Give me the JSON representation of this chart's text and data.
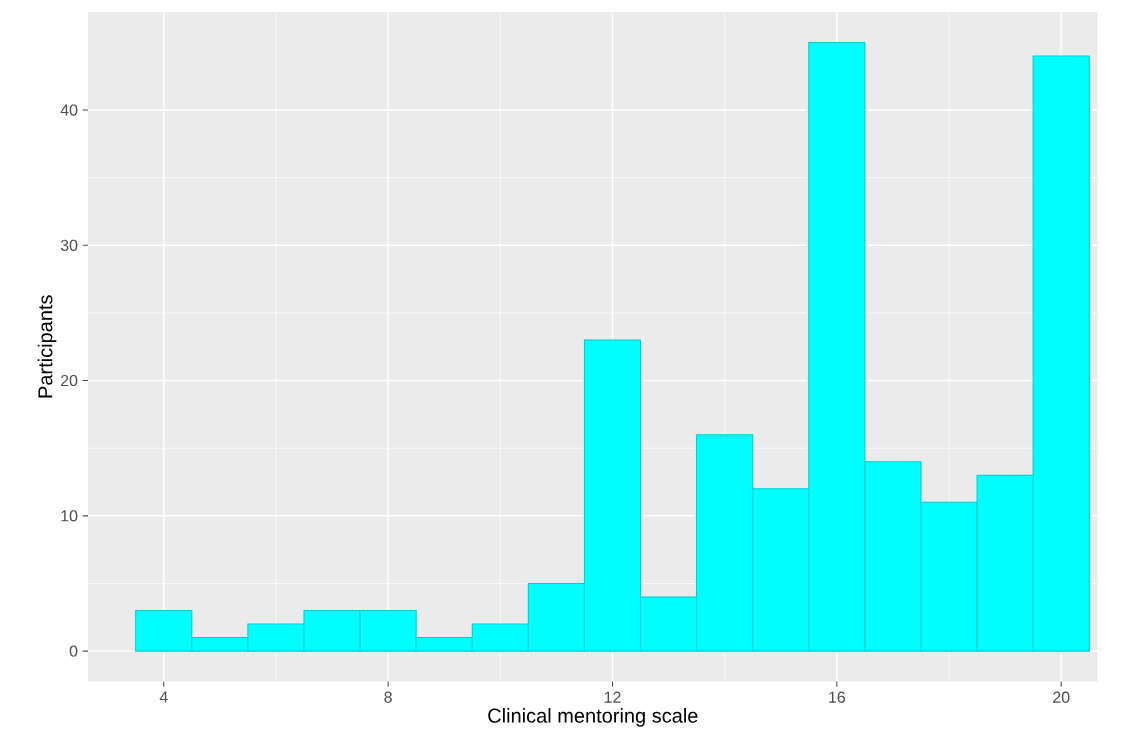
{
  "chart_data": {
    "type": "histogram",
    "xlabel": "Clinical mentoring scale",
    "ylabel": "Participants",
    "bins": [
      3.5,
      4.5,
      5.5,
      6.5,
      7.5,
      8.5,
      9.5,
      10.5,
      11.5,
      12.5,
      13.5,
      14.5,
      15.5,
      16.5,
      17.5,
      18.5,
      19.5,
      20.5
    ],
    "values": [
      3,
      1,
      2,
      3,
      3,
      1,
      2,
      5,
      23,
      4,
      16,
      12,
      45,
      14,
      11,
      13,
      44
    ],
    "color": "#00ffff",
    "xlim": [
      2.65,
      20.65
    ],
    "ylim": [
      -2.25,
      47.25
    ],
    "xticks": [
      4,
      8,
      12,
      16,
      20
    ],
    "yticks": [
      0,
      10,
      20,
      30,
      40
    ],
    "grid": true
  }
}
